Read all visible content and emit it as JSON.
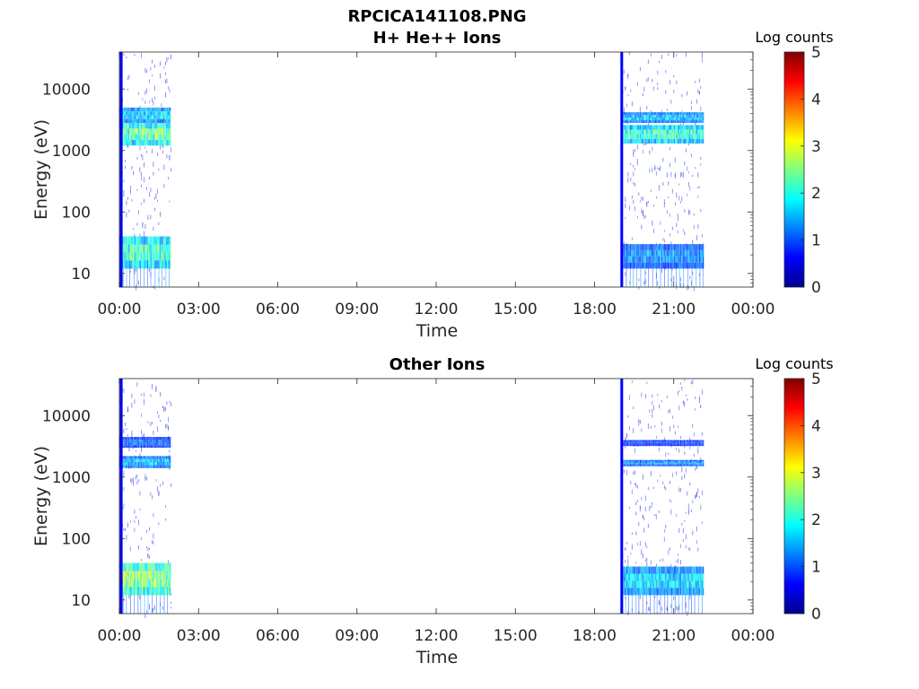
{
  "figure_title": "RPCICA141108.PNG",
  "colormap": [
    "#00008f",
    "#0000ff",
    "#0080ff",
    "#00ffff",
    "#80ff80",
    "#ffff00",
    "#ff8000",
    "#ff0000",
    "#800000"
  ],
  "chart_data": [
    {
      "type": "heatmap",
      "title": "H+ He++ Ions",
      "xlabel": "Time",
      "ylabel": "Energy (eV)",
      "x_tick_labels": [
        "00:00",
        "03:00",
        "06:00",
        "09:00",
        "12:00",
        "15:00",
        "18:00",
        "21:00",
        "00:00"
      ],
      "x_range_hours": [
        0,
        24
      ],
      "y_scale": "log",
      "y_range_eV": [
        6,
        40000
      ],
      "y_tick_values": [
        10,
        100,
        1000,
        10000
      ],
      "y_tick_labels": [
        "10",
        "100",
        "1000",
        "10000"
      ],
      "colorbar": {
        "label": "Log counts",
        "range": [
          0,
          5
        ],
        "tick_labels": [
          "0",
          "1",
          "2",
          "3",
          "4",
          "5"
        ]
      },
      "data_intervals_hours": [
        [
          0.0,
          1.95
        ],
        [
          19.05,
          22.1
        ]
      ],
      "spike_lines_hours": [
        0.07,
        19.03
      ],
      "bands": [
        {
          "interval": 0,
          "energy_eV": [
            1200,
            2800
          ],
          "log_counts": 2.5
        },
        {
          "interval": 0,
          "energy_eV": [
            2800,
            5000
          ],
          "log_counts": 1.8
        },
        {
          "interval": 0,
          "energy_eV": [
            12,
            40
          ],
          "log_counts": 2.3
        },
        {
          "interval": 1,
          "energy_eV": [
            1300,
            2600
          ],
          "log_counts": 2.2
        },
        {
          "interval": 1,
          "energy_eV": [
            2800,
            4200
          ],
          "log_counts": 1.6
        },
        {
          "interval": 1,
          "energy_eV": [
            12,
            30
          ],
          "log_counts": 1.4
        }
      ]
    },
    {
      "type": "heatmap",
      "title": "Other Ions",
      "xlabel": "Time",
      "ylabel": "Energy (eV)",
      "x_tick_labels": [
        "00:00",
        "03:00",
        "06:00",
        "09:00",
        "12:00",
        "15:00",
        "18:00",
        "21:00",
        "00:00"
      ],
      "x_range_hours": [
        0,
        24
      ],
      "y_scale": "log",
      "y_range_eV": [
        6,
        40000
      ],
      "y_tick_values": [
        10,
        100,
        1000,
        10000
      ],
      "y_tick_labels": [
        "10",
        "100",
        "1000",
        "10000"
      ],
      "colorbar": {
        "label": "Log counts",
        "range": [
          0,
          5
        ],
        "tick_labels": [
          "0",
          "1",
          "2",
          "3",
          "4",
          "5"
        ]
      },
      "data_intervals_hours": [
        [
          0.0,
          1.95
        ],
        [
          19.05,
          22.1
        ]
      ],
      "spike_lines_hours": [
        0.07,
        19.03
      ],
      "bands": [
        {
          "interval": 0,
          "energy_eV": [
            1400,
            2200
          ],
          "log_counts": 1.6
        },
        {
          "interval": 0,
          "energy_eV": [
            3000,
            4500
          ],
          "log_counts": 1.2
        },
        {
          "interval": 0,
          "energy_eV": [
            12,
            40
          ],
          "log_counts": 2.7
        },
        {
          "interval": 1,
          "energy_eV": [
            1500,
            1900
          ],
          "log_counts": 1.4
        },
        {
          "interval": 1,
          "energy_eV": [
            3200,
            4000
          ],
          "log_counts": 1.0
        },
        {
          "interval": 1,
          "energy_eV": [
            12,
            35
          ],
          "log_counts": 1.8
        }
      ]
    }
  ]
}
